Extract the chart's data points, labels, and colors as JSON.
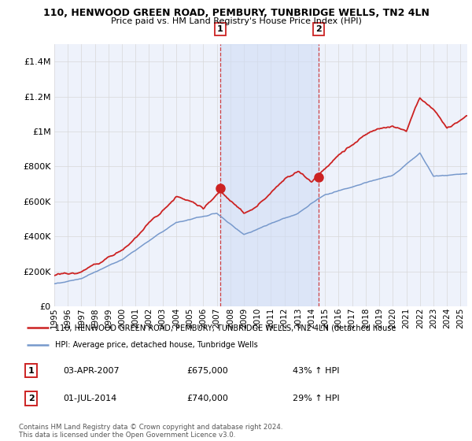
{
  "title1": "110, HENWOOD GREEN ROAD, PEMBURY, TUNBRIDGE WELLS, TN2 4LN",
  "title2": "Price paid vs. HM Land Registry's House Price Index (HPI)",
  "red_label": "110, HENWOOD GREEN ROAD, PEMBURY, TUNBRIDGE WELLS, TN2 4LN (detached house",
  "blue_label": "HPI: Average price, detached house, Tunbridge Wells",
  "sale1_date": "03-APR-2007",
  "sale1_price": "£675,000",
  "sale1_pct": "43% ↑ HPI",
  "sale2_date": "01-JUL-2014",
  "sale2_price": "£740,000",
  "sale2_pct": "29% ↑ HPI",
  "copyright": "Contains HM Land Registry data © Crown copyright and database right 2024.\nThis data is licensed under the Open Government Licence v3.0.",
  "ylim_max": 1500000,
  "sale1_x": 2007.25,
  "sale2_x": 2014.5,
  "bg_color": "#eef2fb",
  "shade_color": "#d0ddf5",
  "red_color": "#cc2222",
  "blue_color": "#7799cc",
  "grid_color": "#d8d8d8"
}
